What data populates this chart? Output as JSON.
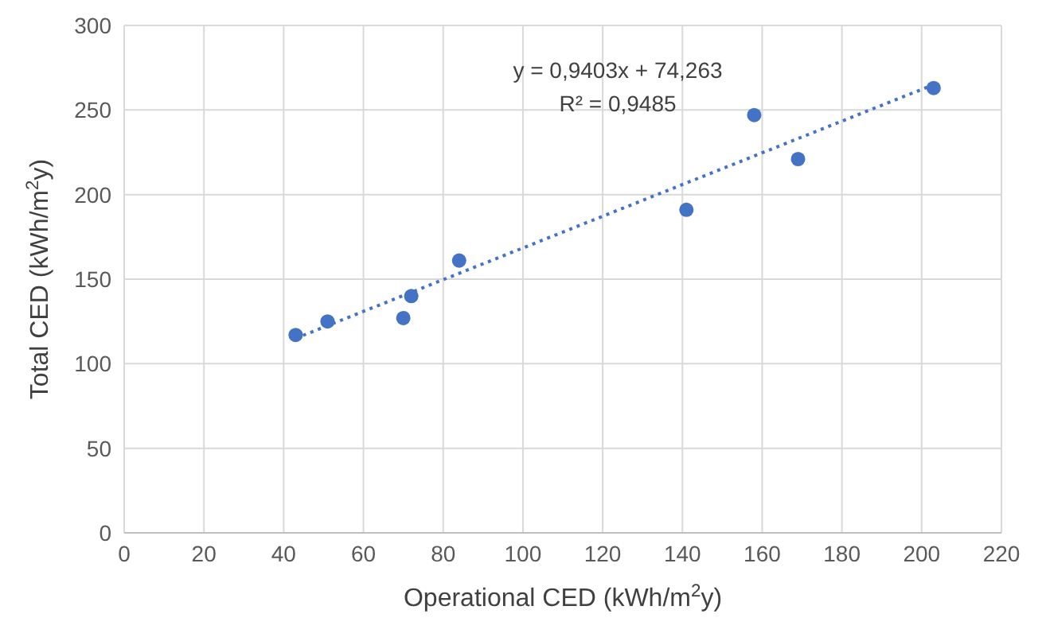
{
  "chart_data": {
    "type": "scatter",
    "xlabel": "Operational CED (kWh/m$^{2}$y)",
    "ylabel": "Total CED (kWh/m$^{2}$y)",
    "xlim": [
      0,
      220
    ],
    "xticks": [
      0,
      20,
      40,
      60,
      80,
      100,
      120,
      140,
      160,
      180,
      200,
      220
    ],
    "ylim": [
      0,
      300
    ],
    "yticks": [
      0,
      50,
      100,
      150,
      200,
      250,
      300
    ],
    "grid": true,
    "series": [
      {
        "color": "#4472c4",
        "marker": "circle",
        "x": [
          43,
          51,
          70,
          72,
          84,
          141,
          158,
          169,
          203
        ],
        "values": [
          117,
          125,
          127,
          140,
          161,
          191,
          247,
          221,
          263
        ]
      },
      {
        "type": "line",
        "color": "#4472c4",
        "line_style": "dotted",
        "marker": "none",
        "x": [
          43,
          203
        ],
        "values": [
          115,
          265
        ]
      }
    ],
    "annotations": [
      "y = 0,9403x + 74,263",
      "R² = 0,9485"
    ]
  }
}
